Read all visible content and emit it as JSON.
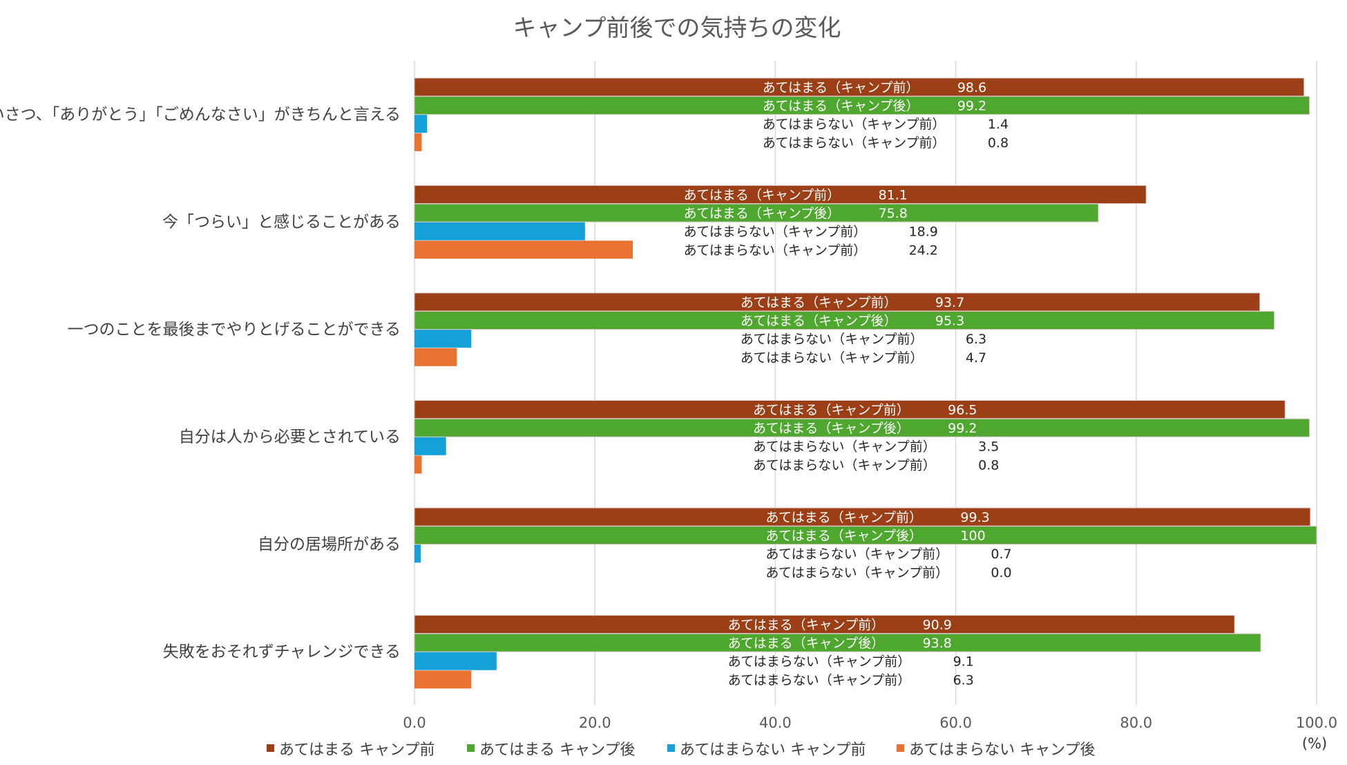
{
  "chart_data": {
    "type": "bar",
    "orientation": "horizontal",
    "title": "キャンプ前後での気持ちの変化",
    "unit_label": "(%)",
    "xlim": [
      0,
      100
    ],
    "x_ticks": [
      "0.0",
      "20.0",
      "40.0",
      "60.0",
      "80.0",
      "100.0"
    ],
    "grid": true,
    "legend_position": "bottom",
    "categories": [
      "あいさつ、「ありがとう」「ごめんなさい」がきちんと言える",
      "今「つらい」と感じることがある",
      "一つのことを最後までやりとげることができる",
      "自分は人から必要とされている",
      "自分の居場所がある",
      "失敗をおそれずチャレンジできる"
    ],
    "series": [
      {
        "name": "あてはまる キャンプ前",
        "color": "#9C3F17",
        "values": [
          98.6,
          81.1,
          93.7,
          96.5,
          99.3,
          90.9
        ]
      },
      {
        "name": "あてはまる キャンプ後",
        "color": "#4EA72E",
        "values": [
          99.2,
          75.8,
          95.3,
          99.2,
          100,
          93.8
        ]
      },
      {
        "name": "あてはまらない キャンプ前",
        "color": "#15A0D7",
        "values": [
          1.4,
          18.9,
          6.3,
          3.5,
          0.7,
          9.1
        ]
      },
      {
        "name": "あてはまらない キャンプ後",
        "color": "#E97132",
        "values": [
          0.8,
          24.2,
          4.7,
          0.8,
          0.0,
          6.3
        ]
      }
    ],
    "data_labels": [
      [
        {
          "text": "あてはまる（キャンプ前）",
          "value": "98.6"
        },
        {
          "text": "あてはまる（キャンプ後）",
          "value": "99.2"
        },
        {
          "text": "あてはまらない（キャンプ前）",
          "value": "1.4"
        },
        {
          "text": "あてはまらない（キャンプ前）",
          "value": "0.8"
        }
      ],
      [
        {
          "text": "あてはまる（キャンプ前）",
          "value": "81.1"
        },
        {
          "text": "あてはまる（キャンプ後）",
          "value": "75.8"
        },
        {
          "text": "あてはまらない（キャンプ前）",
          "value": "18.9"
        },
        {
          "text": "あてはまらない（キャンプ前）",
          "value": "24.2"
        }
      ],
      [
        {
          "text": "あてはまる（キャンプ前）",
          "value": "93.7"
        },
        {
          "text": "あてはまる（キャンプ後）",
          "value": "95.3"
        },
        {
          "text": "あてはまらない（キャンプ前）",
          "value": "6.3"
        },
        {
          "text": "あてはまらない（キャンプ前）",
          "value": "4.7"
        }
      ],
      [
        {
          "text": "あてはまる（キャンプ前）",
          "value": "96.5"
        },
        {
          "text": "あてはまる（キャンプ後）",
          "value": "99.2"
        },
        {
          "text": "あてはまらない（キャンプ前）",
          "value": "3.5"
        },
        {
          "text": "あてはまらない（キャンプ前）",
          "value": "0.8"
        }
      ],
      [
        {
          "text": "あてはまる（キャンプ前）",
          "value": "99.3"
        },
        {
          "text": "あてはまる（キャンプ後）",
          "value": "100"
        },
        {
          "text": "あてはまらない（キャンプ前）",
          "value": "0.7"
        },
        {
          "text": "あてはまらない（キャンプ前）",
          "value": "0.0"
        }
      ],
      [
        {
          "text": "あてはまる（キャンプ前）",
          "value": "90.9"
        },
        {
          "text": "あてはまる（キャンプ後）",
          "value": "93.8"
        },
        {
          "text": "あてはまらない（キャンプ前）",
          "value": "9.1"
        },
        {
          "text": "あてはまらない（キャンプ前）",
          "value": "6.3"
        }
      ]
    ]
  }
}
